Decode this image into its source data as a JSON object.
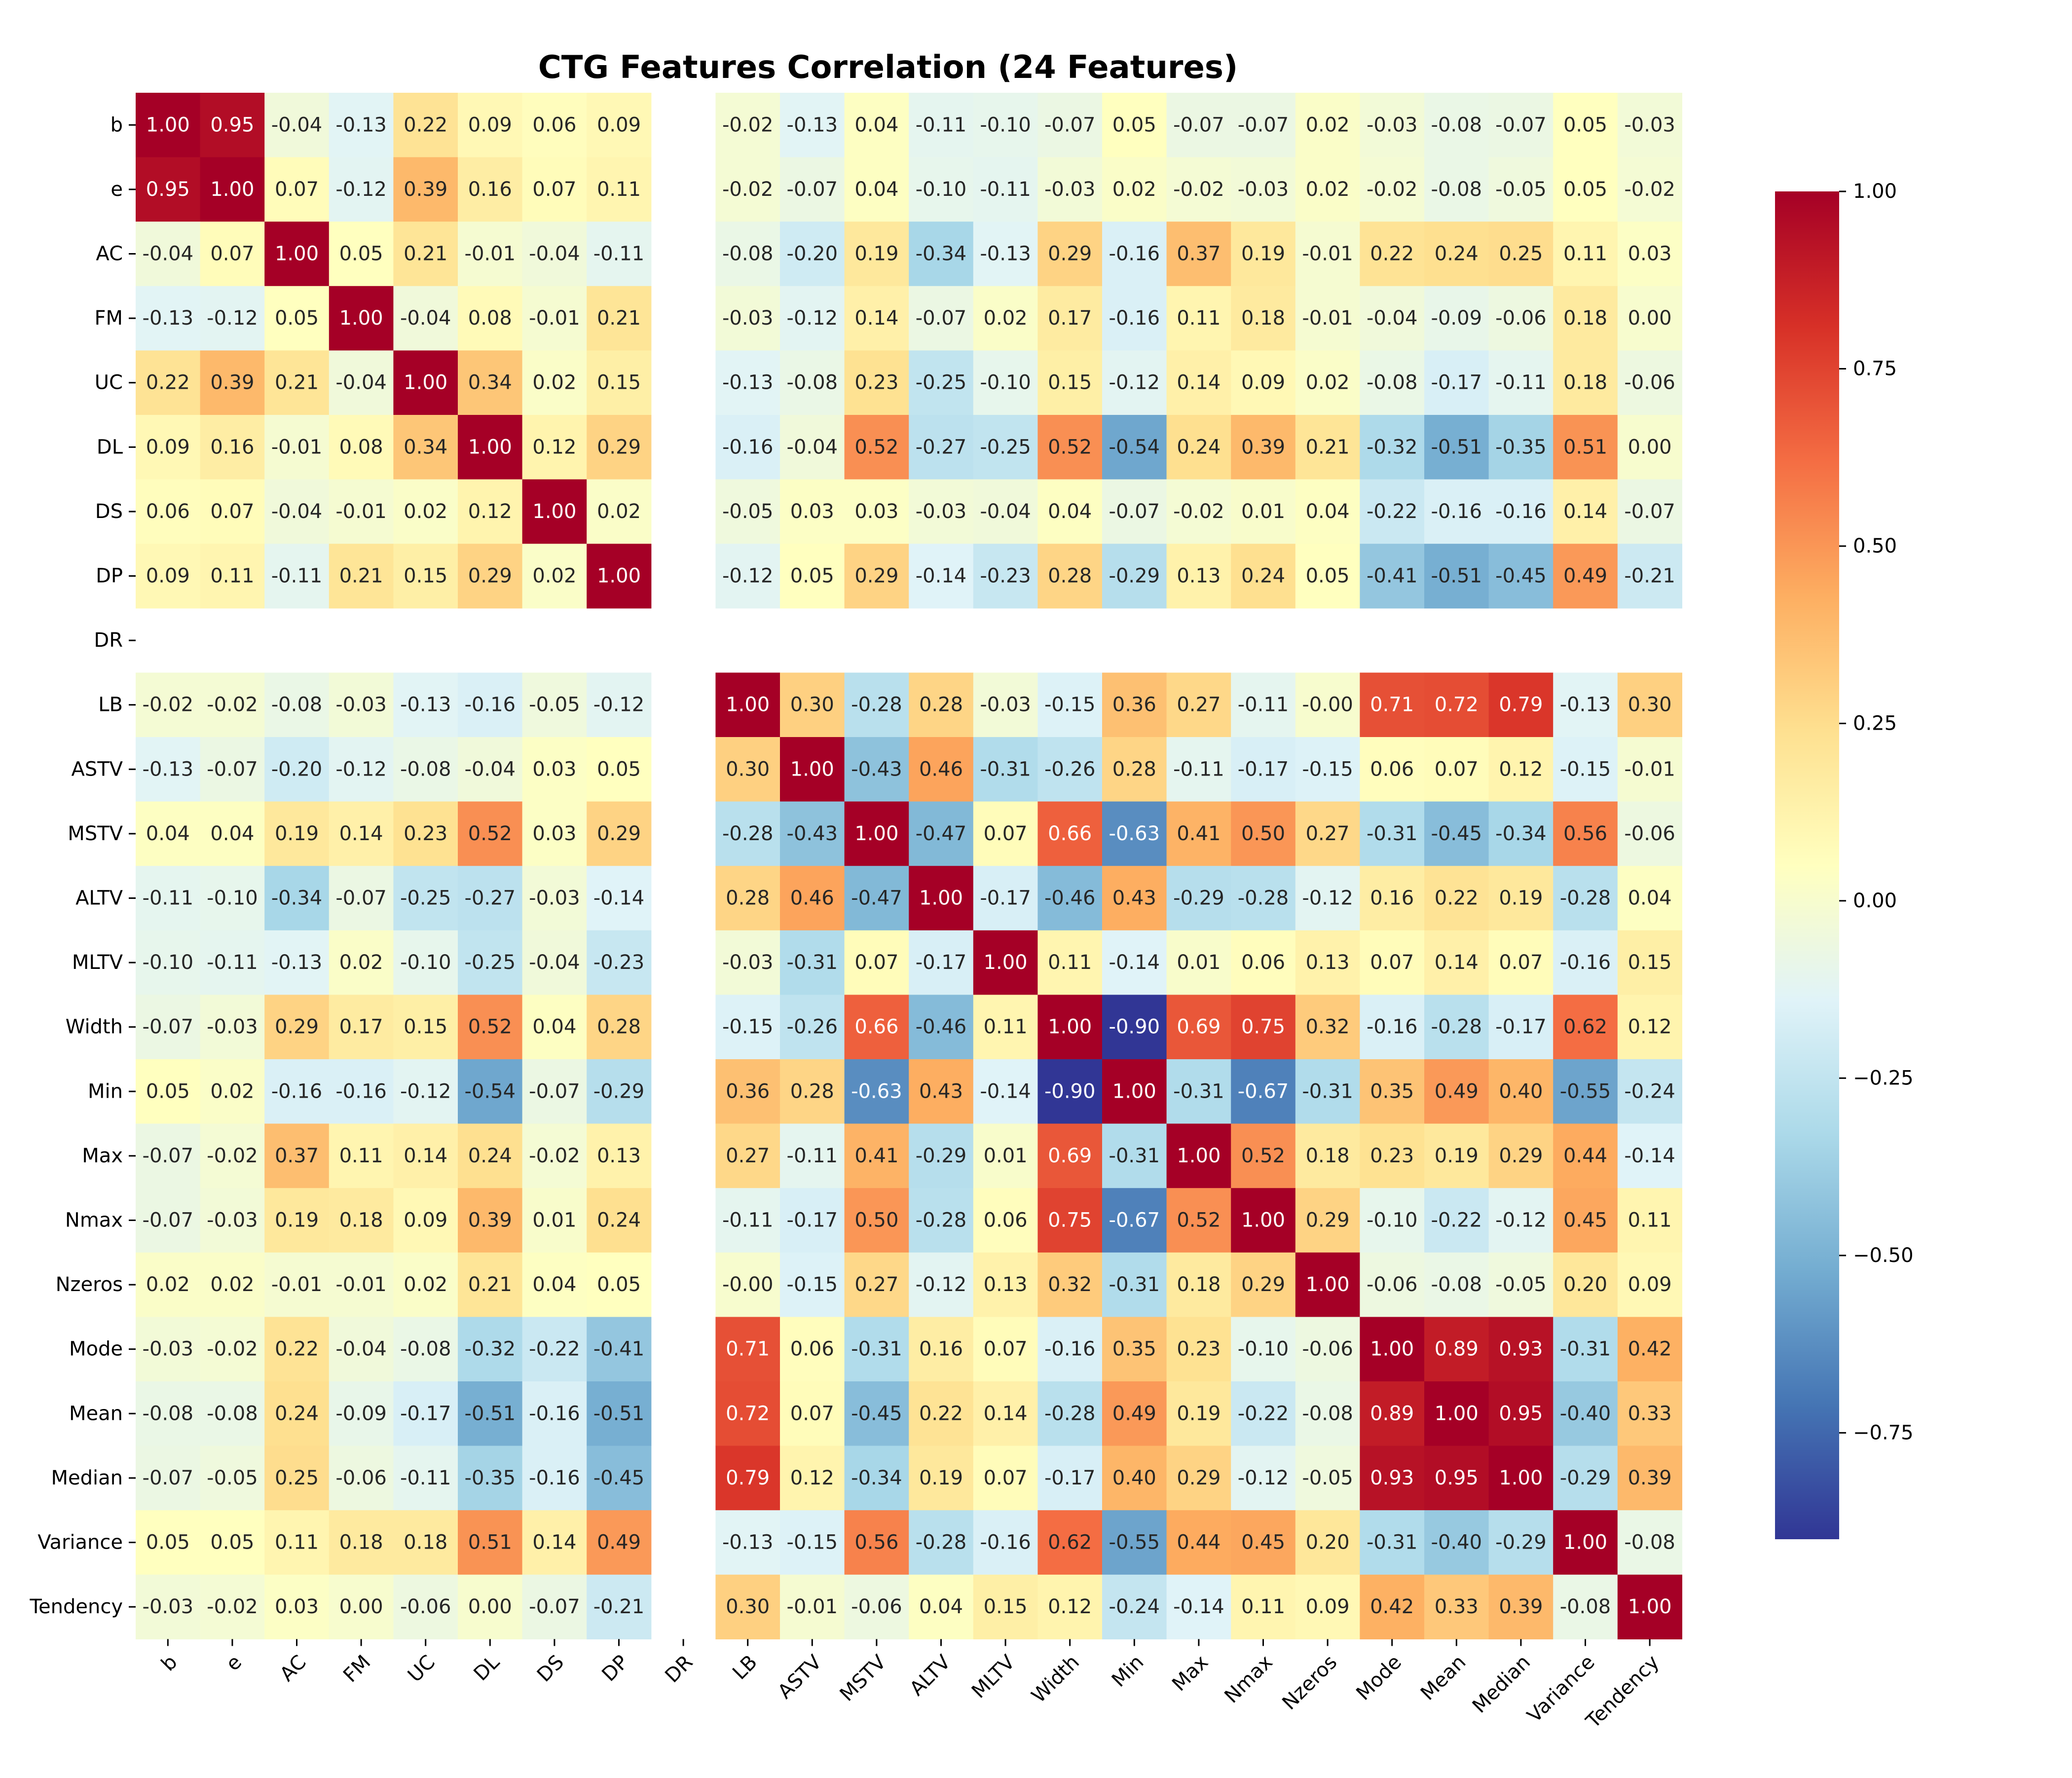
{
  "chart_data": {
    "type": "heatmap",
    "title": "CTG Features Correlation (24 Features)",
    "labels": [
      "b",
      "e",
      "AC",
      "FM",
      "UC",
      "DL",
      "DS",
      "DP",
      "DR",
      "LB",
      "ASTV",
      "MSTV",
      "ALTV",
      "MLTV",
      "Width",
      "Min",
      "Max",
      "Nmax",
      "Nzeros",
      "Mode",
      "Mean",
      "Median",
      "Variance",
      "Tendency"
    ],
    "values": [
      [
        "1.00",
        "0.95",
        "-0.04",
        "-0.13",
        "0.22",
        "0.09",
        "0.06",
        "0.09",
        null,
        "-0.02",
        "-0.13",
        "0.04",
        "-0.11",
        "-0.10",
        "-0.07",
        "0.05",
        "-0.07",
        "-0.07",
        "0.02",
        "-0.03",
        "-0.08",
        "-0.07",
        "0.05",
        "-0.03"
      ],
      [
        "0.95",
        "1.00",
        "0.07",
        "-0.12",
        "0.39",
        "0.16",
        "0.07",
        "0.11",
        null,
        "-0.02",
        "-0.07",
        "0.04",
        "-0.10",
        "-0.11",
        "-0.03",
        "0.02",
        "-0.02",
        "-0.03",
        "0.02",
        "-0.02",
        "-0.08",
        "-0.05",
        "0.05",
        "-0.02"
      ],
      [
        "-0.04",
        "0.07",
        "1.00",
        "0.05",
        "0.21",
        "-0.01",
        "-0.04",
        "-0.11",
        null,
        "-0.08",
        "-0.20",
        "0.19",
        "-0.34",
        "-0.13",
        "0.29",
        "-0.16",
        "0.37",
        "0.19",
        "-0.01",
        "0.22",
        "0.24",
        "0.25",
        "0.11",
        "0.03"
      ],
      [
        "-0.13",
        "-0.12",
        "0.05",
        "1.00",
        "-0.04",
        "0.08",
        "-0.01",
        "0.21",
        null,
        "-0.03",
        "-0.12",
        "0.14",
        "-0.07",
        "0.02",
        "0.17",
        "-0.16",
        "0.11",
        "0.18",
        "-0.01",
        "-0.04",
        "-0.09",
        "-0.06",
        "0.18",
        "0.00"
      ],
      [
        "0.22",
        "0.39",
        "0.21",
        "-0.04",
        "1.00",
        "0.34",
        "0.02",
        "0.15",
        null,
        "-0.13",
        "-0.08",
        "0.23",
        "-0.25",
        "-0.10",
        "0.15",
        "-0.12",
        "0.14",
        "0.09",
        "0.02",
        "-0.08",
        "-0.17",
        "-0.11",
        "0.18",
        "-0.06"
      ],
      [
        "0.09",
        "0.16",
        "-0.01",
        "0.08",
        "0.34",
        "1.00",
        "0.12",
        "0.29",
        null,
        "-0.16",
        "-0.04",
        "0.52",
        "-0.27",
        "-0.25",
        "0.52",
        "-0.54",
        "0.24",
        "0.39",
        "0.21",
        "-0.32",
        "-0.51",
        "-0.35",
        "0.51",
        "0.00"
      ],
      [
        "0.06",
        "0.07",
        "-0.04",
        "-0.01",
        "0.02",
        "0.12",
        "1.00",
        "0.02",
        null,
        "-0.05",
        "0.03",
        "0.03",
        "-0.03",
        "-0.04",
        "0.04",
        "-0.07",
        "-0.02",
        "0.01",
        "0.04",
        "-0.22",
        "-0.16",
        "-0.16",
        "0.14",
        "-0.07"
      ],
      [
        "0.09",
        "0.11",
        "-0.11",
        "0.21",
        "0.15",
        "0.29",
        "0.02",
        "1.00",
        null,
        "-0.12",
        "0.05",
        "0.29",
        "-0.14",
        "-0.23",
        "0.28",
        "-0.29",
        "0.13",
        "0.24",
        "0.05",
        "-0.41",
        "-0.51",
        "-0.45",
        "0.49",
        "-0.21"
      ],
      [
        null,
        null,
        null,
        null,
        null,
        null,
        null,
        null,
        null,
        null,
        null,
        null,
        null,
        null,
        null,
        null,
        null,
        null,
        null,
        null,
        null,
        null,
        null,
        null
      ],
      [
        "-0.02",
        "-0.02",
        "-0.08",
        "-0.03",
        "-0.13",
        "-0.16",
        "-0.05",
        "-0.12",
        null,
        "1.00",
        "0.30",
        "-0.28",
        "0.28",
        "-0.03",
        "-0.15",
        "0.36",
        "0.27",
        "-0.11",
        "-0.00",
        "0.71",
        "0.72",
        "0.79",
        "-0.13",
        "0.30"
      ],
      [
        "-0.13",
        "-0.07",
        "-0.20",
        "-0.12",
        "-0.08",
        "-0.04",
        "0.03",
        "0.05",
        null,
        "0.30",
        "1.00",
        "-0.43",
        "0.46",
        "-0.31",
        "-0.26",
        "0.28",
        "-0.11",
        "-0.17",
        "-0.15",
        "0.06",
        "0.07",
        "0.12",
        "-0.15",
        "-0.01"
      ],
      [
        "0.04",
        "0.04",
        "0.19",
        "0.14",
        "0.23",
        "0.52",
        "0.03",
        "0.29",
        null,
        "-0.28",
        "-0.43",
        "1.00",
        "-0.47",
        "0.07",
        "0.66",
        "-0.63",
        "0.41",
        "0.50",
        "0.27",
        "-0.31",
        "-0.45",
        "-0.34",
        "0.56",
        "-0.06"
      ],
      [
        "-0.11",
        "-0.10",
        "-0.34",
        "-0.07",
        "-0.25",
        "-0.27",
        "-0.03",
        "-0.14",
        null,
        "0.28",
        "0.46",
        "-0.47",
        "1.00",
        "-0.17",
        "-0.46",
        "0.43",
        "-0.29",
        "-0.28",
        "-0.12",
        "0.16",
        "0.22",
        "0.19",
        "-0.28",
        "0.04"
      ],
      [
        "-0.10",
        "-0.11",
        "-0.13",
        "0.02",
        "-0.10",
        "-0.25",
        "-0.04",
        "-0.23",
        null,
        "-0.03",
        "-0.31",
        "0.07",
        "-0.17",
        "1.00",
        "0.11",
        "-0.14",
        "0.01",
        "0.06",
        "0.13",
        "0.07",
        "0.14",
        "0.07",
        "-0.16",
        "0.15"
      ],
      [
        "-0.07",
        "-0.03",
        "0.29",
        "0.17",
        "0.15",
        "0.52",
        "0.04",
        "0.28",
        null,
        "-0.15",
        "-0.26",
        "0.66",
        "-0.46",
        "0.11",
        "1.00",
        "-0.90",
        "0.69",
        "0.75",
        "0.32",
        "-0.16",
        "-0.28",
        "-0.17",
        "0.62",
        "0.12"
      ],
      [
        "0.05",
        "0.02",
        "-0.16",
        "-0.16",
        "-0.12",
        "-0.54",
        "-0.07",
        "-0.29",
        null,
        "0.36",
        "0.28",
        "-0.63",
        "0.43",
        "-0.14",
        "-0.90",
        "1.00",
        "-0.31",
        "-0.67",
        "-0.31",
        "0.35",
        "0.49",
        "0.40",
        "-0.55",
        "-0.24"
      ],
      [
        "-0.07",
        "-0.02",
        "0.37",
        "0.11",
        "0.14",
        "0.24",
        "-0.02",
        "0.13",
        null,
        "0.27",
        "-0.11",
        "0.41",
        "-0.29",
        "0.01",
        "0.69",
        "-0.31",
        "1.00",
        "0.52",
        "0.18",
        "0.23",
        "0.19",
        "0.29",
        "0.44",
        "-0.14"
      ],
      [
        "-0.07",
        "-0.03",
        "0.19",
        "0.18",
        "0.09",
        "0.39",
        "0.01",
        "0.24",
        null,
        "-0.11",
        "-0.17",
        "0.50",
        "-0.28",
        "0.06",
        "0.75",
        "-0.67",
        "0.52",
        "1.00",
        "0.29",
        "-0.10",
        "-0.22",
        "-0.12",
        "0.45",
        "0.11"
      ],
      [
        "0.02",
        "0.02",
        "-0.01",
        "-0.01",
        "0.02",
        "0.21",
        "0.04",
        "0.05",
        null,
        "-0.00",
        "-0.15",
        "0.27",
        "-0.12",
        "0.13",
        "0.32",
        "-0.31",
        "0.18",
        "0.29",
        "1.00",
        "-0.06",
        "-0.08",
        "-0.05",
        "0.20",
        "0.09"
      ],
      [
        "-0.03",
        "-0.02",
        "0.22",
        "-0.04",
        "-0.08",
        "-0.32",
        "-0.22",
        "-0.41",
        null,
        "0.71",
        "0.06",
        "-0.31",
        "0.16",
        "0.07",
        "-0.16",
        "0.35",
        "0.23",
        "-0.10",
        "-0.06",
        "1.00",
        "0.89",
        "0.93",
        "-0.31",
        "0.42"
      ],
      [
        "-0.08",
        "-0.08",
        "0.24",
        "-0.09",
        "-0.17",
        "-0.51",
        "-0.16",
        "-0.51",
        null,
        "0.72",
        "0.07",
        "-0.45",
        "0.22",
        "0.14",
        "-0.28",
        "0.49",
        "0.19",
        "-0.22",
        "-0.08",
        "0.89",
        "1.00",
        "0.95",
        "-0.40",
        "0.33"
      ],
      [
        "-0.07",
        "-0.05",
        "0.25",
        "-0.06",
        "-0.11",
        "-0.35",
        "-0.16",
        "-0.45",
        null,
        "0.79",
        "0.12",
        "-0.34",
        "0.19",
        "0.07",
        "-0.17",
        "0.40",
        "0.29",
        "-0.12",
        "-0.05",
        "0.93",
        "0.95",
        "1.00",
        "-0.29",
        "0.39"
      ],
      [
        "0.05",
        "0.05",
        "0.11",
        "0.18",
        "0.18",
        "0.51",
        "0.14",
        "0.49",
        null,
        "-0.13",
        "-0.15",
        "0.56",
        "-0.28",
        "-0.16",
        "0.62",
        "-0.55",
        "0.44",
        "0.45",
        "0.20",
        "-0.31",
        "-0.40",
        "-0.29",
        "1.00",
        "-0.08"
      ],
      [
        "-0.03",
        "-0.02",
        "0.03",
        "0.00",
        "-0.06",
        "0.00",
        "-0.07",
        "-0.21",
        null,
        "0.30",
        "-0.01",
        "-0.06",
        "0.04",
        "0.15",
        "0.12",
        "-0.24",
        "-0.14",
        "0.11",
        "0.09",
        "0.42",
        "0.33",
        "0.39",
        "-0.08",
        "1.00"
      ]
    ],
    "colormap": "RdYlBu_r",
    "vmin": -0.9,
    "vmax": 1.0,
    "colorbar": {
      "ticks": [
        1.0,
        0.75,
        0.5,
        0.25,
        0.0,
        -0.25,
        -0.5,
        -0.75
      ],
      "tick_labels": [
        "1.00",
        "0.75",
        "0.50",
        "0.25",
        "0.00",
        "−0.25",
        "−0.50",
        "−0.75"
      ],
      "position": "right"
    },
    "annotations": true
  }
}
